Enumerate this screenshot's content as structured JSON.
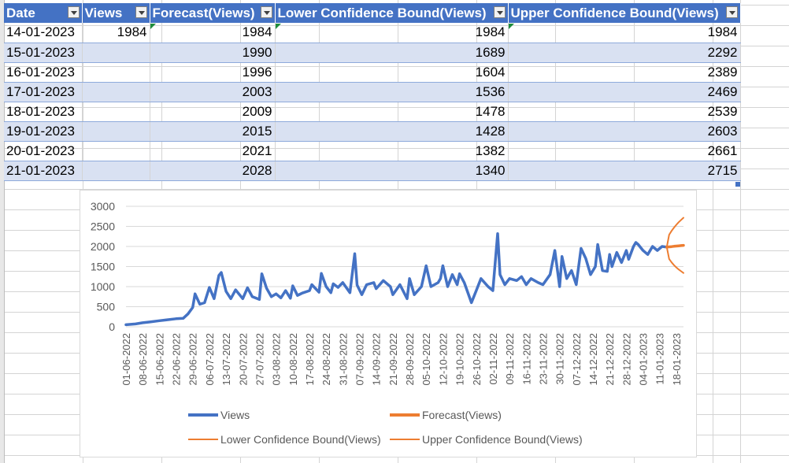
{
  "table": {
    "headers": [
      "Date",
      "Views",
      "Forecast(Views)",
      "Lower Confidence Bound(Views)",
      "Upper Confidence Bound(Views)"
    ],
    "rows": [
      [
        "14-01-2023",
        "1984",
        "1984",
        "1984",
        "1984"
      ],
      [
        "15-01-2023",
        "",
        "1990",
        "1689",
        "2292"
      ],
      [
        "16-01-2023",
        "",
        "1996",
        "1604",
        "2389"
      ],
      [
        "17-01-2023",
        "",
        "2003",
        "1536",
        "2469"
      ],
      [
        "18-01-2023",
        "",
        "2009",
        "1478",
        "2539"
      ],
      [
        "19-01-2023",
        "",
        "2015",
        "1428",
        "2603"
      ],
      [
        "20-01-2023",
        "",
        "2021",
        "1382",
        "2661"
      ],
      [
        "21-01-2023",
        "",
        "2028",
        "1340",
        "2715"
      ]
    ]
  },
  "chart_data": {
    "type": "line",
    "ylim": [
      0,
      3000
    ],
    "yticks": [
      "0",
      "500",
      "1000",
      "1500",
      "2000",
      "2500",
      "3000"
    ],
    "xlabels": [
      "01-06-2022",
      "08-06-2022",
      "15-06-2022",
      "22-06-2022",
      "29-06-2022",
      "06-07-2022",
      "13-07-2022",
      "20-07-2022",
      "27-07-2022",
      "03-08-2022",
      "10-08-2022",
      "17-08-2022",
      "24-08-2022",
      "31-08-2022",
      "07-09-2022",
      "14-09-2022",
      "21-09-2022",
      "28-09-2022",
      "05-10-2022",
      "12-10-2022",
      "19-10-2022",
      "26-10-2022",
      "02-11-2022",
      "09-11-2022",
      "16-11-2022",
      "23-11-2022",
      "30-11-2022",
      "07-12-2022",
      "14-12-2022",
      "21-12-2022",
      "28-12-2022",
      "04-01-2023",
      "11-01-2023",
      "18-01-2023"
    ],
    "x_start": "01-06-2022",
    "x_end": "21-01-2023",
    "grid": true,
    "legend_position": "bottom",
    "series": [
      {
        "name": "Views",
        "color": "#4472c4",
        "x": [
          "01-06-2022",
          "05-06-2022",
          "08-06-2022",
          "11-06-2022",
          "15-06-2022",
          "18-06-2022",
          "22-06-2022",
          "25-06-2022",
          "27-06-2022",
          "29-06-2022",
          "30-06-2022",
          "02-07-2022",
          "04-07-2022",
          "06-07-2022",
          "08-07-2022",
          "10-07-2022",
          "11-07-2022",
          "13-07-2022",
          "15-07-2022",
          "17-07-2022",
          "20-07-2022",
          "22-07-2022",
          "24-07-2022",
          "27-07-2022",
          "28-07-2022",
          "30-07-2022",
          "01-08-2022",
          "03-08-2022",
          "05-08-2022",
          "07-08-2022",
          "09-08-2022",
          "10-08-2022",
          "12-08-2022",
          "14-08-2022",
          "17-08-2022",
          "18-08-2022",
          "21-08-2022",
          "22-08-2022",
          "24-08-2022",
          "26-08-2022",
          "27-08-2022",
          "29-08-2022",
          "31-08-2022",
          "03-09-2022",
          "05-09-2022",
          "06-09-2022",
          "08-09-2022",
          "10-09-2022",
          "13-09-2022",
          "14-09-2022",
          "17-09-2022",
          "20-09-2022",
          "21-09-2022",
          "24-09-2022",
          "27-09-2022",
          "28-09-2022",
          "30-09-2022",
          "03-10-2022",
          "05-10-2022",
          "07-10-2022",
          "10-10-2022",
          "11-10-2022",
          "12-10-2022",
          "14-10-2022",
          "16-10-2022",
          "18-10-2022",
          "19-10-2022",
          "21-10-2022",
          "24-10-2022",
          "26-10-2022",
          "28-10-2022",
          "31-10-2022",
          "02-11-2022",
          "04-11-2022",
          "05-11-2022",
          "07-11-2022",
          "09-11-2022",
          "12-11-2022",
          "14-11-2022",
          "16-11-2022",
          "18-11-2022",
          "21-11-2022",
          "23-11-2022",
          "26-11-2022",
          "28-11-2022",
          "30-11-2022",
          "01-12-2022",
          "03-12-2022",
          "05-12-2022",
          "07-12-2022",
          "09-12-2022",
          "11-12-2022",
          "13-12-2022",
          "15-12-2022",
          "16-12-2022",
          "18-12-2022",
          "20-12-2022",
          "21-12-2022",
          "22-12-2022",
          "24-12-2022",
          "26-12-2022",
          "28-12-2022",
          "29-12-2022",
          "31-12-2022",
          "01-01-2023",
          "02-01-2023",
          "04-01-2023",
          "06-01-2023",
          "08-01-2023",
          "10-01-2023",
          "12-01-2023",
          "14-01-2023"
        ],
        "values": [
          50,
          70,
          100,
          120,
          150,
          170,
          200,
          210,
          320,
          480,
          820,
          560,
          600,
          980,
          700,
          1280,
          1350,
          880,
          700,
          920,
          700,
          970,
          750,
          680,
          1320,
          960,
          750,
          820,
          720,
          900,
          710,
          1020,
          780,
          840,
          900,
          1050,
          860,
          1330,
          1000,
          850,
          1070,
          980,
          1100,
          850,
          1820,
          1040,
          800,
          1050,
          1100,
          950,
          1150,
          1000,
          800,
          1050,
          700,
          1200,
          800,
          1000,
          1520,
          1000,
          1100,
          1200,
          1520,
          1000,
          1300,
          1050,
          1320,
          1100,
          600,
          900,
          1200,
          1000,
          900,
          2320,
          1300,
          1050,
          1200,
          1150,
          1250,
          1050,
          1200,
          1100,
          1050,
          1300,
          1900,
          1000,
          1750,
          1200,
          1400,
          1050,
          1950,
          1700,
          1300,
          1500,
          2050,
          1400,
          1380,
          1800,
          1500,
          1850,
          1600,
          1900,
          1680,
          2000,
          2100,
          2050,
          1900,
          1800,
          2000,
          1900,
          2000,
          1984
        ]
      },
      {
        "name": "Forecast(Views)",
        "color": "#ed7d31",
        "x": [
          "14-01-2023",
          "15-01-2023",
          "16-01-2023",
          "17-01-2023",
          "18-01-2023",
          "19-01-2023",
          "20-01-2023",
          "21-01-2023"
        ],
        "values": [
          1984,
          1990,
          1996,
          2003,
          2009,
          2015,
          2021,
          2028
        ]
      },
      {
        "name": "Lower Confidence Bound(Views)",
        "color": "#ed7d31",
        "x": [
          "14-01-2023",
          "15-01-2023",
          "16-01-2023",
          "17-01-2023",
          "18-01-2023",
          "19-01-2023",
          "20-01-2023",
          "21-01-2023"
        ],
        "values": [
          1984,
          1689,
          1604,
          1536,
          1478,
          1428,
          1382,
          1340
        ]
      },
      {
        "name": "Upper Confidence Bound(Views)",
        "color": "#ed7d31",
        "x": [
          "14-01-2023",
          "15-01-2023",
          "16-01-2023",
          "17-01-2023",
          "18-01-2023",
          "19-01-2023",
          "20-01-2023",
          "21-01-2023"
        ],
        "values": [
          1984,
          2292,
          2389,
          2469,
          2539,
          2603,
          2661,
          2715
        ]
      }
    ]
  }
}
